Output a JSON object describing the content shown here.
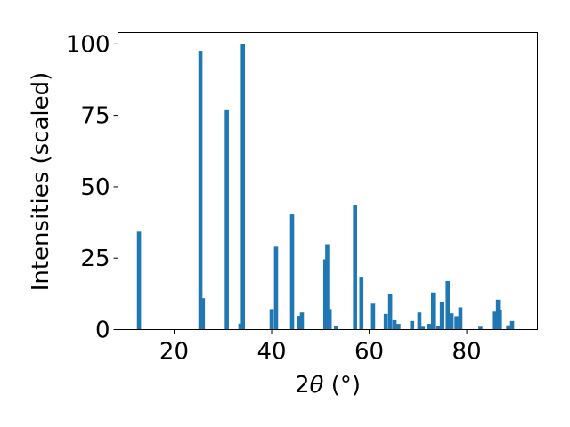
{
  "chart_data": {
    "type": "bar",
    "title": "",
    "xlabel": "2θ (°)",
    "xlabel_parts": {
      "prefix": "2",
      "theta": "θ",
      "suffix": " (°)"
    },
    "ylabel": "Intensities (scaled)",
    "xlim": [
      8.5,
      94.5
    ],
    "ylim": [
      0,
      104
    ],
    "xticks": [
      20,
      40,
      60,
      80
    ],
    "yticks": [
      0,
      25,
      50,
      75,
      100
    ],
    "grid": false,
    "legend": false,
    "bar_color": "#1f77b4",
    "series": [
      {
        "x": [
          12.8,
          25.4,
          25.9,
          30.8,
          33.6,
          34.1,
          40.0,
          40.9,
          44.2,
          45.6,
          46.2,
          51.0,
          51.4,
          51.9,
          53.2,
          57.1,
          58.4,
          60.8,
          63.4,
          64.3,
          65.2,
          66.0,
          68.8,
          70.3,
          71.0,
          72.3,
          73.1,
          74.2,
          74.9,
          76.1,
          76.9,
          77.9,
          78.7,
          82.8,
          85.6,
          86.4,
          86.8,
          88.5,
          89.3
        ],
        "values": [
          34.3,
          97.6,
          11.0,
          76.8,
          2.1,
          100.0,
          7.2,
          29.0,
          40.3,
          4.8,
          6.0,
          24.6,
          29.9,
          7.2,
          1.4,
          43.7,
          18.5,
          9.1,
          5.5,
          12.5,
          3.3,
          2.0,
          3.0,
          6.0,
          1.0,
          2.0,
          13.0,
          1.2,
          9.7,
          17.0,
          5.7,
          4.7,
          7.8,
          1.0,
          6.3,
          10.5,
          7.0,
          1.5,
          3.0
        ]
      }
    ]
  }
}
